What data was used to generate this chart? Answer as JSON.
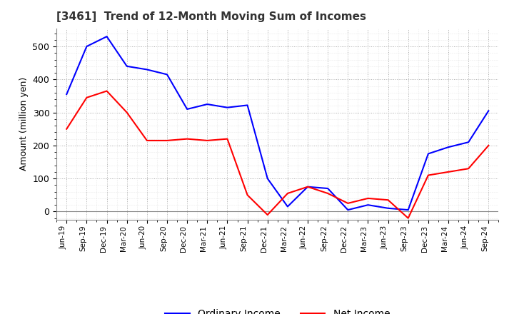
{
  "title": "[3461]  Trend of 12-Month Moving Sum of Incomes",
  "ylabel": "Amount (million yen)",
  "x_labels": [
    "Jun-19",
    "Sep-19",
    "Dec-19",
    "Mar-20",
    "Jun-20",
    "Sep-20",
    "Dec-20",
    "Mar-21",
    "Jun-21",
    "Sep-21",
    "Dec-21",
    "Mar-22",
    "Jun-22",
    "Sep-22",
    "Dec-22",
    "Mar-23",
    "Jun-23",
    "Sep-23",
    "Dec-23",
    "Mar-24",
    "Jun-24",
    "Sep-24"
  ],
  "ordinary_income": [
    355,
    500,
    530,
    440,
    430,
    415,
    310,
    325,
    315,
    322,
    100,
    15,
    75,
    70,
    5,
    20,
    10,
    5,
    175,
    195,
    210,
    305
  ],
  "net_income": [
    250,
    345,
    365,
    300,
    215,
    215,
    220,
    215,
    220,
    50,
    -10,
    55,
    75,
    55,
    25,
    40,
    35,
    -20,
    110,
    120,
    130,
    200
  ],
  "ordinary_color": "#0000FF",
  "net_color": "#FF0000",
  "ylim": [
    -25,
    555
  ],
  "yticks": [
    0,
    100,
    200,
    300,
    400,
    500
  ],
  "background_color": "#FFFFFF",
  "major_grid_color": "#AAAAAA",
  "minor_grid_color": "#CCCCCC",
  "legend_ordinary": "Ordinary Income",
  "legend_net": "Net Income",
  "title_color": "#333333"
}
